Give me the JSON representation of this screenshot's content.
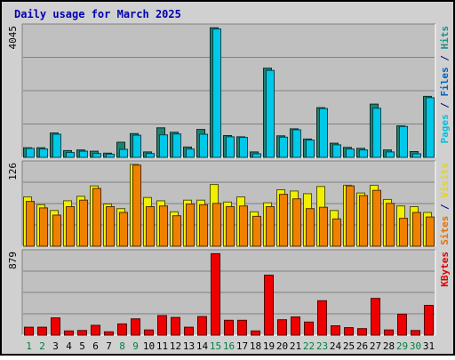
{
  "chart_data": {
    "type": "bar",
    "title": "Daily usage for March 2025",
    "categories": [
      "1",
      "2",
      "3",
      "4",
      "5",
      "6",
      "7",
      "8",
      "9",
      "10",
      "11",
      "12",
      "13",
      "14",
      "15",
      "16",
      "17",
      "18",
      "19",
      "20",
      "21",
      "22",
      "23",
      "24",
      "25",
      "26",
      "27",
      "28",
      "29",
      "30",
      "31"
    ],
    "weekend_days": [
      "1",
      "2",
      "8",
      "9",
      "15",
      "16",
      "22",
      "23",
      "29",
      "30"
    ],
    "panels": [
      {
        "id": "top",
        "max_label": "4045",
        "ymax": 4045,
        "right_labels": [
          {
            "text": "Pages",
            "color": "#00c0e0"
          },
          {
            "text": " / ",
            "color": "#000080"
          },
          {
            "text": "Files",
            "color": "#0060c0"
          },
          {
            "text": " / ",
            "color": "#000080"
          },
          {
            "text": "Hits",
            "color": "#209080"
          }
        ],
        "series": [
          {
            "name": "Hits",
            "color": "#20806f",
            "values": [
              300,
              300,
              760,
              210,
              230,
              190,
              130,
              470,
              740,
              170,
              920,
              780,
              320,
              870,
              4040,
              680,
              640,
              170,
              2780,
              670,
              890,
              570,
              1550,
              440,
              310,
              280,
              1660,
              230,
              980,
              180,
              1900
            ]
          },
          {
            "name": "Files",
            "color": "#00c8e8",
            "values": [
              280,
              260,
              720,
              150,
              190,
              120,
              100,
              250,
              690,
              120,
              700,
              730,
              260,
              720,
              4000,
              640,
              620,
              110,
              2710,
              630,
              860,
              540,
              1520,
              390,
              260,
              230,
              1530,
              170,
              960,
              110,
              1860
            ]
          }
        ]
      },
      {
        "id": "middle",
        "max_label": "126",
        "ymax": 126,
        "right_labels": [
          {
            "text": "Sites",
            "color": "#e87000"
          },
          {
            "text": " / ",
            "color": "#000080"
          },
          {
            "text": "Visits",
            "color": "#e8d800"
          }
        ],
        "series": [
          {
            "name": "Visits",
            "color": "#f0f000",
            "values": [
              76,
              64,
              55,
              70,
              77,
              93,
              65,
              58,
              126,
              75,
              70,
              53,
              71,
              71,
              95,
              68,
              76,
              53,
              67,
              87,
              85,
              81,
              92,
              55,
              94,
              82,
              94,
              72,
              62,
              61,
              52
            ]
          },
          {
            "name": "Sites",
            "color": "#f08000",
            "values": [
              69,
              59,
              48,
              61,
              71,
              89,
              61,
              52,
              125,
              61,
              62,
              47,
              65,
              64,
              66,
              61,
              62,
              46,
              61,
              80,
              73,
              58,
              60,
              42,
              93,
              78,
              86,
              66,
              43,
              52,
              45
            ]
          }
        ]
      },
      {
        "id": "bottom",
        "max_label": "879",
        "ymax": 879,
        "right_labels": [
          {
            "text": "KBytes",
            "color": "#e00000"
          }
        ],
        "series": [
          {
            "name": "KBytes",
            "color": "#ee0000",
            "values": [
              85,
              85,
              185,
              45,
              50,
              105,
              35,
              120,
              175,
              55,
              210,
              190,
              85,
              200,
              875,
              160,
              160,
              45,
              645,
              165,
              195,
              140,
              370,
              100,
              80,
              70,
              395,
              55,
              225,
              50,
              320
            ]
          }
        ]
      }
    ]
  }
}
